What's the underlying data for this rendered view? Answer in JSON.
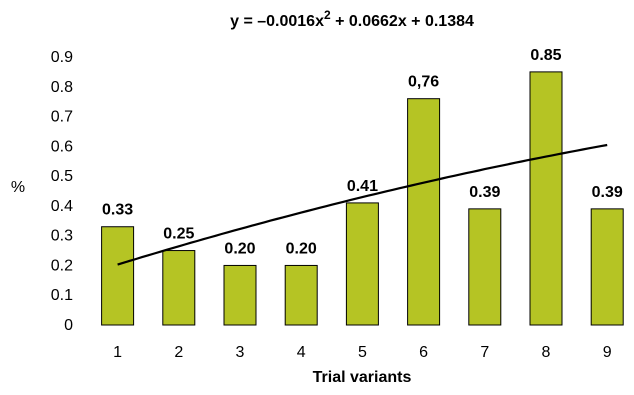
{
  "chart_data": {
    "type": "bar",
    "title": "y = –0.0016x",
    "title_exp": "2",
    "title_rest": " + 0.0662x + 0.1384",
    "xlabel": "Trial variants",
    "ylabel": "%",
    "categories": [
      "1",
      "2",
      "3",
      "4",
      "5",
      "6",
      "7",
      "8",
      "9"
    ],
    "values": [
      0.33,
      0.25,
      0.2,
      0.2,
      0.41,
      0.76,
      0.39,
      0.85,
      0.39
    ],
    "data_labels": [
      "0.33",
      "0.25",
      "0.20",
      "0.20",
      "0.41",
      "0,76",
      "0.39",
      "0.85",
      "0.39"
    ],
    "ylim": [
      0,
      0.9
    ],
    "yticks": [
      0,
      0.1,
      0.2,
      0.3,
      0.4,
      0.5,
      0.6,
      0.7,
      0.8,
      0.9
    ],
    "ytick_labels": [
      "0",
      "0.1",
      "0.2",
      "0.3",
      "0.4",
      "0.5",
      "0.6",
      "0.7",
      "0.8",
      "0.9"
    ],
    "trendline": {
      "type": "polynomial",
      "a": -0.0016,
      "b": 0.0662,
      "c": 0.1384
    },
    "grid": false,
    "legend": "none",
    "colors": {
      "bar": "#b5c424",
      "bar_edge": "#000000",
      "trendline": "#000000"
    }
  }
}
